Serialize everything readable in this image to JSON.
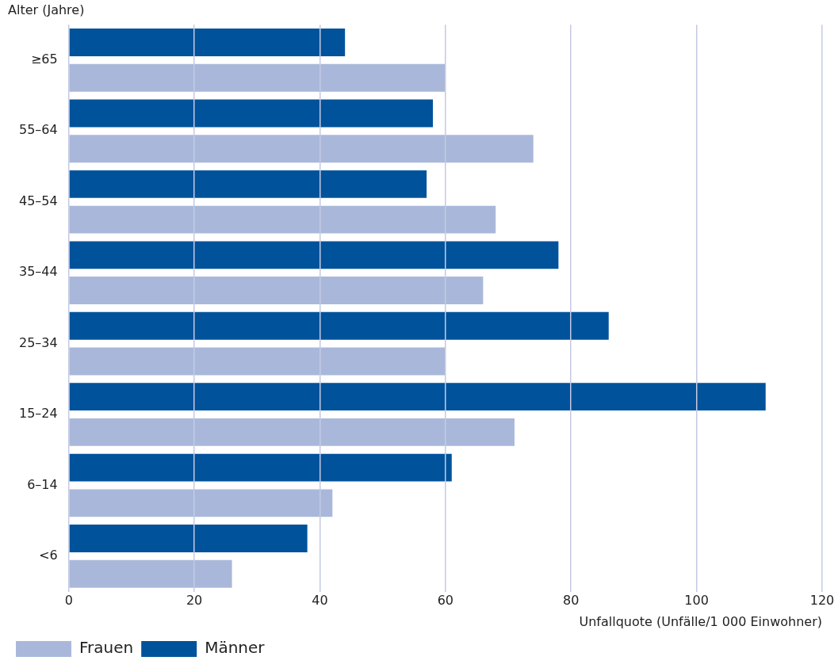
{
  "chart_data": {
    "type": "bar",
    "orientation": "horizontal",
    "ylabel": "Alter (Jahre)",
    "xlabel": "Unfallquote (Unfälle/1 000 Einwohner)",
    "categories": [
      "≥65",
      "55–64",
      "45–54",
      "35–44",
      "25–34",
      "15–24",
      "6–14",
      "<6"
    ],
    "series": [
      {
        "name": "Männer",
        "color": "#00529b",
        "values": [
          44,
          58,
          57,
          78,
          86,
          111,
          61,
          38
        ]
      },
      {
        "name": "Frauen",
        "color": "#a9b8da",
        "values": [
          60,
          74,
          68,
          66,
          60,
          71,
          42,
          26
        ]
      }
    ],
    "xlim": [
      0,
      120
    ],
    "xticks": [
      0,
      20,
      40,
      60,
      80,
      100,
      120
    ],
    "grid": "x",
    "legend": "bottom left"
  }
}
